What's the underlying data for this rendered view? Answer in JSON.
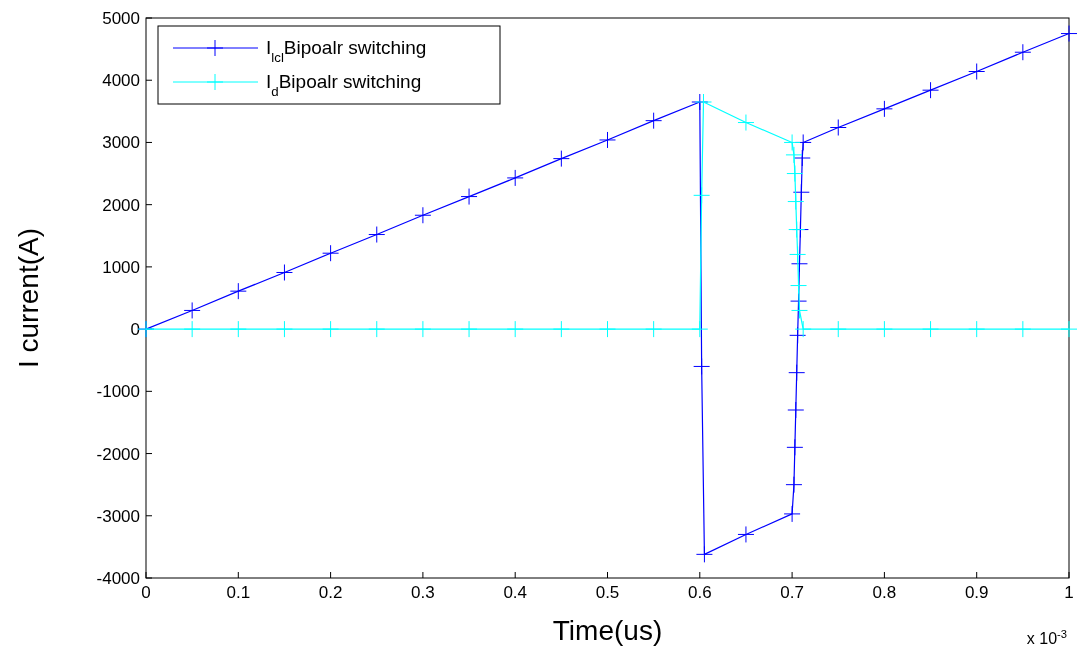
{
  "chart_data": {
    "type": "line",
    "xlabel": "Time(us)",
    "ylabel": "I current(A)",
    "xlim": [
      0,
      1
    ],
    "xticks": [
      0,
      0.1,
      0.2,
      0.3,
      0.4,
      0.5,
      0.6,
      0.7,
      0.8,
      0.9,
      1
    ],
    "ylim": [
      -4000,
      5000
    ],
    "yticks": [
      -4000,
      -3000,
      -2000,
      -1000,
      0,
      1000,
      2000,
      3000,
      4000,
      5000
    ],
    "grid": false,
    "legend": "top left",
    "marker": "cross",
    "line_style": "solid",
    "annotations": [
      "x 10$^{-3}$"
    ],
    "series": [
      {
        "name": "I$_{lcl}$Bipoalr switching",
        "color": "#0000ff",
        "x": [
          0,
          0.05,
          0.1,
          0.15,
          0.2,
          0.25,
          0.3,
          0.35,
          0.4,
          0.45,
          0.5,
          0.55,
          0.6,
          0.602,
          0.605,
          0.65,
          0.7,
          0.702,
          0.703,
          0.704,
          0.705,
          0.706,
          0.707,
          0.708,
          0.709,
          0.71,
          0.711,
          0.712,
          0.75,
          0.8,
          0.85,
          0.9,
          0.95,
          1
        ],
        "values": [
          0,
          300,
          610,
          910,
          1220,
          1520,
          1830,
          2130,
          2430,
          2740,
          3040,
          3350,
          3650,
          -600,
          -3620,
          -3300,
          -2970,
          -2500,
          -1900,
          -1300,
          -700,
          -100,
          450,
          1050,
          1600,
          2200,
          2750,
          3000,
          3240,
          3540,
          3840,
          4140,
          4450,
          4750
        ]
      },
      {
        "name": "I$_{d}$Bipoalr switching",
        "color": "#00ffff",
        "x": [
          0,
          0.05,
          0.1,
          0.15,
          0.2,
          0.25,
          0.3,
          0.35,
          0.4,
          0.45,
          0.5,
          0.55,
          0.6,
          0.602,
          0.604,
          0.65,
          0.7,
          0.702,
          0.703,
          0.704,
          0.705,
          0.706,
          0.707,
          0.708,
          0.712,
          0.75,
          0.8,
          0.85,
          0.9,
          0.95,
          1
        ],
        "values": [
          0,
          0,
          0,
          0,
          0,
          0,
          0,
          0,
          0,
          0,
          0,
          0,
          0,
          2150,
          3650,
          3320,
          3000,
          2800,
          2500,
          2050,
          1600,
          1200,
          700,
          300,
          0,
          0,
          0,
          0,
          0,
          0,
          0
        ]
      }
    ]
  }
}
